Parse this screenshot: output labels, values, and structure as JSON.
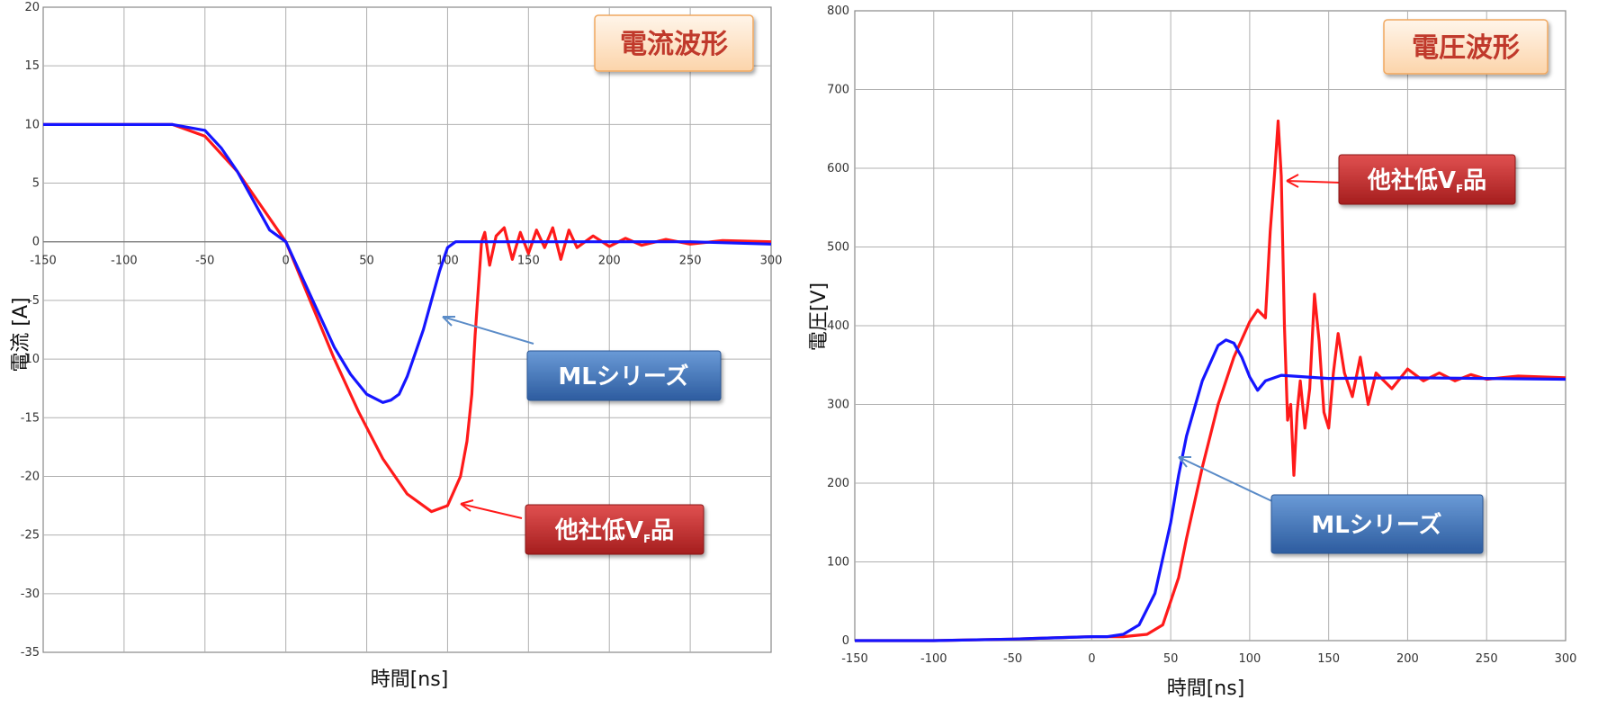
{
  "chart_data": [
    {
      "type": "line",
      "title": "電流波形",
      "xlabel": "時間[ns]",
      "ylabel": "電流 [A]",
      "xlim": [
        -150,
        300
      ],
      "ylim": [
        -35,
        20
      ],
      "xticks": [
        "-150",
        "-100",
        "-50",
        "0",
        "50",
        "100",
        "150",
        "200",
        "250",
        "300"
      ],
      "yticks": [
        "20",
        "15",
        "10",
        "5",
        "0",
        "-5",
        "-10",
        "-15",
        "-20",
        "-25",
        "-30",
        "-35"
      ],
      "grid": true,
      "series": [
        {
          "name": "他社低VF品",
          "color": "#ff1a1a",
          "x": [
            -150,
            -100,
            -70,
            -50,
            -30,
            -15,
            0,
            15,
            30,
            45,
            60,
            75,
            90,
            100,
            108,
            112,
            115,
            117,
            119,
            121,
            123,
            126,
            130,
            135,
            140,
            145,
            150,
            155,
            160,
            165,
            170,
            175,
            180,
            190,
            200,
            210,
            220,
            235,
            250,
            270,
            300
          ],
          "y": [
            10,
            10,
            10,
            9,
            6,
            3,
            0,
            -5,
            -10,
            -14.5,
            -18.5,
            -21.5,
            -23,
            -22.5,
            -20,
            -17,
            -13,
            -8,
            -4,
            0,
            0.8,
            -2,
            0.5,
            1.2,
            -1.5,
            0.8,
            -1,
            1,
            -0.5,
            1.2,
            -1.5,
            1,
            -0.5,
            0.5,
            -0.4,
            0.3,
            -0.3,
            0.2,
            -0.2,
            0.1,
            0
          ]
        },
        {
          "name": "MLシリーズ",
          "color": "#1515ff",
          "x": [
            -150,
            -100,
            -70,
            -50,
            -40,
            -30,
            -20,
            -10,
            0,
            10,
            20,
            30,
            40,
            50,
            60,
            65,
            70,
            75,
            80,
            85,
            90,
            95,
            100,
            105,
            110,
            120,
            150,
            200,
            250,
            300
          ],
          "y": [
            10,
            10,
            10,
            9.5,
            8,
            6,
            3.5,
            1,
            0,
            -3,
            -6,
            -9,
            -11.3,
            -13,
            -13.7,
            -13.5,
            -13,
            -11.5,
            -9.5,
            -7.5,
            -5,
            -2.5,
            -0.5,
            0,
            0,
            0,
            0,
            0,
            0,
            -0.2
          ]
        }
      ],
      "annotations": [
        {
          "text": "MLシリーズ",
          "color": "#3a6bb0"
        },
        {
          "text_main": "他社低V",
          "text_sub": "F",
          "text_end": "品",
          "color": "#b22222"
        }
      ]
    },
    {
      "type": "line",
      "title": "電圧波形",
      "xlabel": "時間[ns]",
      "ylabel": "電圧[V]",
      "xlim": [
        -150,
        300
      ],
      "ylim": [
        0,
        800
      ],
      "xticks": [
        "-150",
        "-100",
        "-50",
        "0",
        "50",
        "100",
        "150",
        "200",
        "250",
        "300"
      ],
      "yticks": [
        "800",
        "700",
        "600",
        "500",
        "400",
        "300",
        "200",
        "100",
        "0"
      ],
      "grid": true,
      "series": [
        {
          "name": "他社低VF品",
          "color": "#ff1a1a",
          "x": [
            -150,
            -100,
            -50,
            0,
            20,
            35,
            45,
            50,
            55,
            60,
            70,
            80,
            90,
            100,
            105,
            110,
            113,
            116,
            118,
            120,
            122,
            124,
            126,
            128,
            130,
            132,
            135,
            138,
            141,
            144,
            147,
            150,
            153,
            156,
            160,
            165,
            170,
            175,
            180,
            190,
            200,
            210,
            220,
            230,
            240,
            250,
            270,
            300
          ],
          "y": [
            0,
            0,
            2,
            5,
            5,
            8,
            20,
            50,
            80,
            130,
            220,
            300,
            360,
            405,
            420,
            410,
            520,
            600,
            660,
            590,
            400,
            280,
            300,
            210,
            290,
            330,
            270,
            320,
            440,
            380,
            290,
            270,
            340,
            390,
            340,
            310,
            360,
            300,
            340,
            320,
            345,
            330,
            340,
            330,
            338,
            332,
            336,
            334
          ]
        },
        {
          "name": "MLシリーズ",
          "color": "#1515ff",
          "x": [
            -150,
            -100,
            -50,
            0,
            10,
            20,
            30,
            40,
            50,
            55,
            60,
            70,
            80,
            85,
            90,
            95,
            100,
            105,
            110,
            120,
            150,
            200,
            250,
            300
          ],
          "y": [
            0,
            0,
            2,
            5,
            5,
            8,
            20,
            60,
            150,
            210,
            260,
            330,
            375,
            382,
            378,
            360,
            335,
            318,
            330,
            337,
            333,
            334,
            333,
            332
          ]
        }
      ],
      "annotations": [
        {
          "text_main": "他社低V",
          "text_sub": "F",
          "text_end": "品",
          "color": "#b22222"
        },
        {
          "text": "MLシリーズ",
          "color": "#3a6bb0"
        }
      ]
    }
  ]
}
